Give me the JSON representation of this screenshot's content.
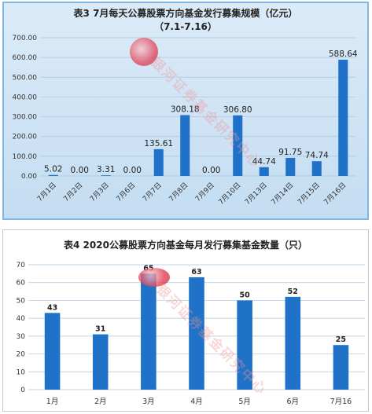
{
  "colors": {
    "bar": "#1f72c8",
    "grid": "#a9c5e0",
    "text": "#333333",
    "logo_red": "#e0344a",
    "logo_blue": "#2a5aa8"
  },
  "watermark_text": "银河证券基金研究中心",
  "chart_data": [
    {
      "type": "bar",
      "title": "表3  7月每天公募股票方向基金发行募集规模（亿元）",
      "subtitle": "（7.1-7.16）",
      "categories": [
        "7月1日",
        "7月2日",
        "7月3日",
        "7月6日",
        "7月7日",
        "7月8日",
        "7月9日",
        "7月10日",
        "7月13日",
        "7月14日",
        "7月15日",
        "7月16日"
      ],
      "values": [
        5.02,
        0.0,
        3.31,
        0.0,
        135.61,
        308.18,
        0.0,
        306.8,
        44.74,
        91.75,
        74.74,
        588.64
      ],
      "value_labels": [
        "5.02",
        "0.00",
        "3.31",
        "0.00",
        "135.61",
        "308.18",
        "0.00",
        "306.80",
        "44.74",
        "91.75",
        "74.74",
        "588.64"
      ],
      "ylim": [
        0,
        700
      ],
      "yticks": [
        "0.00",
        "100.00",
        "200.00",
        "300.00",
        "400.00",
        "500.00",
        "600.00",
        "700.00"
      ],
      "grid": true
    },
    {
      "type": "bar",
      "title": "表4  2020公募股票方向基金每月发行募集基金数量（只）",
      "categories": [
        "1月",
        "2月",
        "3月",
        "4月",
        "5月",
        "6月",
        "7月16"
      ],
      "values": [
        43,
        31,
        65,
        63,
        50,
        52,
        25
      ],
      "value_labels": [
        "43",
        "31",
        "65",
        "63",
        "50",
        "52",
        "25"
      ],
      "ylim": [
        0,
        70
      ],
      "yticks": [
        "0",
        "10",
        "20",
        "30",
        "40",
        "50",
        "60",
        "70"
      ],
      "grid": true
    }
  ]
}
